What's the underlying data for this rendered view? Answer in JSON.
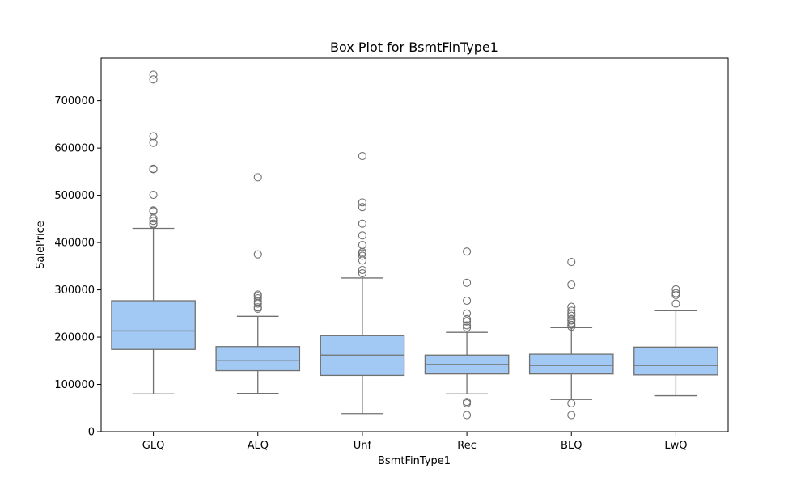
{
  "chart_data": {
    "type": "box",
    "title": "Box Plot for BsmtFinType1",
    "xlabel": "BsmtFinType1",
    "ylabel": "SalePrice",
    "ylim": [
      0,
      790000
    ],
    "yticks": [
      0,
      100000,
      200000,
      300000,
      400000,
      500000,
      600000,
      700000
    ],
    "ytick_labels": [
      "0",
      "100000",
      "200000",
      "300000",
      "400000",
      "500000",
      "600000",
      "700000"
    ],
    "grid": false,
    "colors": {
      "box_fill": "#a1c9f4",
      "line": "#707070"
    },
    "categories": [
      "GLQ",
      "ALQ",
      "Unf",
      "Rec",
      "BLQ",
      "LwQ"
    ],
    "boxes": [
      {
        "category": "GLQ",
        "whisker_low": 80000,
        "q1": 174000,
        "median": 213000,
        "q3": 277000,
        "whisker_high": 430000,
        "outliers": [
          755000,
          745000,
          625000,
          611000,
          556000,
          555000,
          501000,
          468000,
          466000,
          451000,
          446000,
          440000,
          438000
        ]
      },
      {
        "category": "ALQ",
        "whisker_low": 81000,
        "q1": 129000,
        "median": 150000,
        "q3": 180000,
        "whisker_high": 244000,
        "outliers": [
          538000,
          375000,
          290000,
          287000,
          282000,
          275000,
          271000,
          263000,
          260000
        ]
      },
      {
        "category": "Unf",
        "whisker_low": 38000,
        "q1": 119000,
        "median": 162000,
        "q3": 203000,
        "whisker_high": 325000,
        "outliers": [
          583000,
          485000,
          475000,
          440000,
          415000,
          395000,
          380000,
          377000,
          372000,
          362000,
          342000,
          335000
        ]
      },
      {
        "category": "Rec",
        "whisker_low": 80000,
        "q1": 122000,
        "median": 142000,
        "q3": 162000,
        "whisker_high": 210000,
        "outliers": [
          381000,
          315000,
          277000,
          250000,
          238000,
          233000,
          225000,
          220000,
          63000,
          60000,
          35000
        ]
      },
      {
        "category": "BLQ",
        "whisker_low": 68000,
        "q1": 122000,
        "median": 140000,
        "q3": 164000,
        "whisker_high": 220000,
        "outliers": [
          359000,
          311000,
          264000,
          256000,
          250000,
          245000,
          238000,
          235000,
          230000,
          226000,
          222000,
          60000,
          35000
        ]
      },
      {
        "category": "LwQ",
        "whisker_low": 76000,
        "q1": 120000,
        "median": 140000,
        "q3": 179000,
        "whisker_high": 256000,
        "outliers": [
          301000,
          293000,
          289000,
          271000
        ]
      }
    ]
  }
}
